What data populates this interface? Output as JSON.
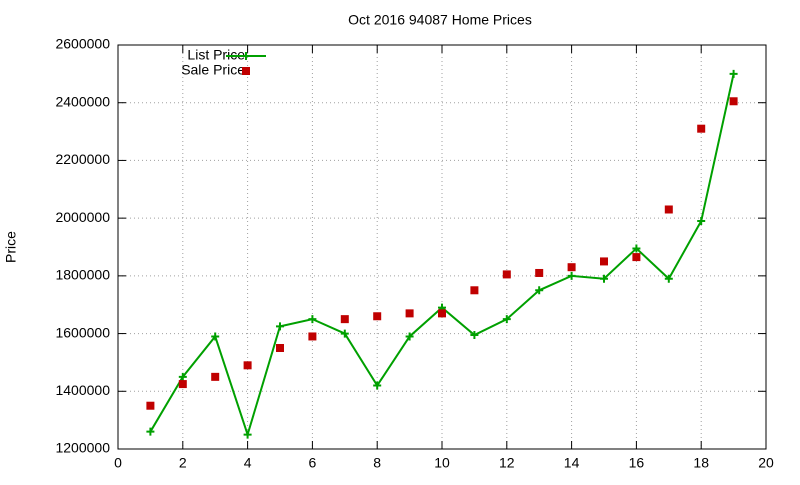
{
  "chart_data": {
    "type": "line",
    "title": "Oct 2016 94087 Home Prices",
    "y_label": "Price",
    "x": [
      1,
      2,
      3,
      4,
      5,
      6,
      7,
      8,
      9,
      10,
      11,
      12,
      13,
      14,
      15,
      16,
      17,
      18,
      19
    ],
    "series": [
      {
        "name": "List Price",
        "color": "#00a000",
        "style": "linespoints",
        "values": [
          1260000,
          1450000,
          1590000,
          1250000,
          1625000,
          1650000,
          1600000,
          1420000,
          1590000,
          1690000,
          1595000,
          1650000,
          1750000,
          1800000,
          1790000,
          1895000,
          1790000,
          1990000,
          2500000
        ]
      },
      {
        "name": "Sale Price",
        "color": "#c00000",
        "style": "points",
        "values": [
          1350000,
          1425000,
          1450000,
          1490000,
          1550000,
          1590000,
          1650000,
          1660000,
          1670000,
          1670000,
          1750000,
          1805000,
          1810000,
          1830000,
          1850000,
          1865000,
          2030000,
          2310000,
          2405000
        ]
      }
    ],
    "xlim": [
      0,
      20
    ],
    "xticks": [
      0,
      2,
      4,
      6,
      8,
      10,
      12,
      14,
      16,
      18,
      20
    ],
    "ylim": [
      1200000,
      2600000
    ],
    "yticks": [
      1200000,
      1400000,
      1600000,
      1800000,
      2000000,
      2200000,
      2400000,
      2600000
    ],
    "grid": true,
    "legend": "top-left"
  }
}
